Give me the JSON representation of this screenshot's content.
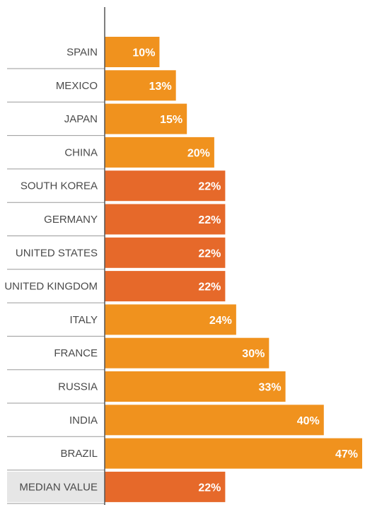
{
  "chart_data": {
    "type": "bar",
    "orientation": "horizontal",
    "title": "",
    "xlabel": "",
    "ylabel": "",
    "categories": [
      "SPAIN",
      "MEXICO",
      "JAPAN",
      "CHINA",
      "SOUTH KOREA",
      "GERMANY",
      "UNITED STATES",
      "UNITED KINGDOM",
      "ITALY",
      "FRANCE",
      "RUSSIA",
      "INDIA",
      "BRAZIL",
      "MEDIAN VALUE"
    ],
    "values": [
      10,
      13,
      15,
      20,
      22,
      22,
      22,
      22,
      24,
      30,
      33,
      40,
      47,
      22
    ],
    "value_labels": [
      "10%",
      "13%",
      "15%",
      "20%",
      "22%",
      "22%",
      "22%",
      "22%",
      "24%",
      "30%",
      "33%",
      "40%",
      "47%",
      "22%"
    ],
    "highlighted_rows": [
      "SOUTH KOREA",
      "GERMANY",
      "UNITED STATES",
      "UNITED KINGDOM"
    ],
    "median_row": "MEDIAN VALUE",
    "xlim": [
      0,
      47
    ],
    "grid": false,
    "legend": "none"
  },
  "colors": {
    "bar": "#F0921E",
    "bar_highlight": "#E6692A",
    "median_label_bg": "#E6E6E6",
    "label_text": "#4A4A4A",
    "value_text": "#FFFFFF",
    "divider": "#9A9A9A",
    "axis": "#555555"
  }
}
